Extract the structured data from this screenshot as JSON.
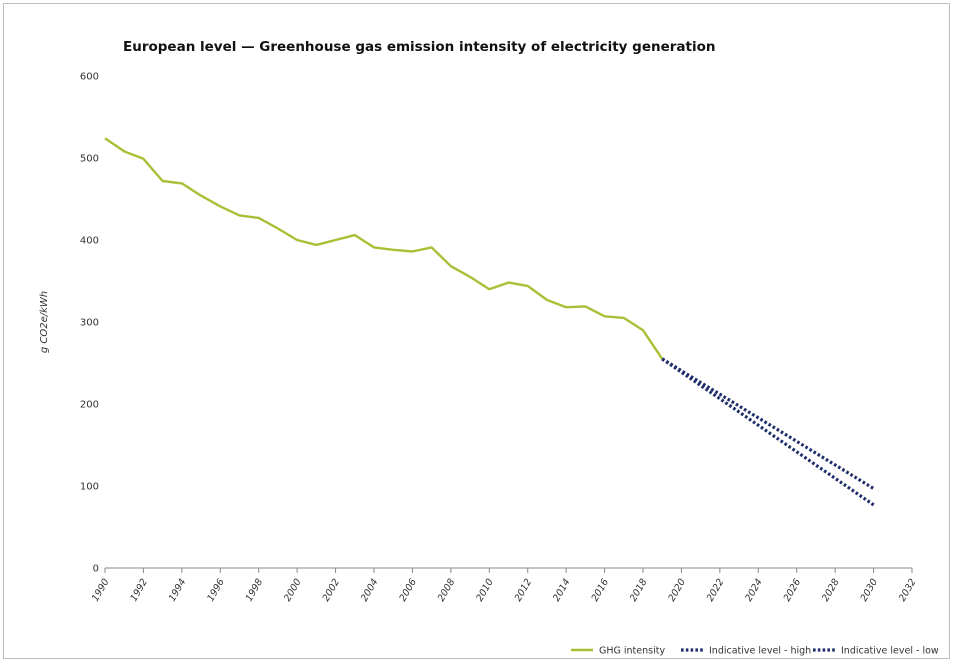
{
  "chart_data": {
    "type": "line",
    "title": "European level — Greenhouse gas emission intensity of electricity generation",
    "ylabel": "g CO2e/kWh",
    "xlabel": "",
    "ylim": [
      0,
      600
    ],
    "xlim": [
      1990,
      2032
    ],
    "yticks": [
      "0",
      "100",
      "200",
      "300",
      "400",
      "500",
      "600"
    ],
    "xticks": [
      "1990",
      "1992",
      "1994",
      "1996",
      "1998",
      "2000",
      "2002",
      "2004",
      "2006",
      "2008",
      "2010",
      "2012",
      "2014",
      "2016",
      "2018",
      "2020",
      "2022",
      "2024",
      "2026",
      "2028",
      "2030",
      "2032"
    ],
    "grid": false,
    "legend_position": "bottom-right",
    "series": [
      {
        "name": "GHG intensity",
        "color": "#a9bf35",
        "style": "solid",
        "x": [
          1990,
          1991,
          1992,
          1993,
          1994,
          1995,
          1996,
          1997,
          1998,
          1999,
          2000,
          2001,
          2002,
          2003,
          2004,
          2005,
          2006,
          2007,
          2008,
          2009,
          2010,
          2011,
          2012,
          2013,
          2014,
          2015,
          2016,
          2017,
          2018,
          2019
        ],
        "y": [
          524,
          508,
          499,
          472,
          469,
          454,
          441,
          430,
          427,
          414,
          400,
          394,
          400,
          406,
          391,
          388,
          386,
          391,
          368,
          355,
          340,
          348,
          344,
          327,
          318,
          319,
          307,
          305,
          290,
          255
        ]
      },
      {
        "name": "Indicative level - high",
        "color": "#1f2d6b",
        "style": "dotted",
        "x": [
          2019,
          2030
        ],
        "y": [
          255,
          97
        ]
      },
      {
        "name": "Indicative level - low",
        "color": "#1f2d6b",
        "style": "dotted",
        "x": [
          2019,
          2030
        ],
        "y": [
          255,
          77
        ]
      }
    ]
  }
}
